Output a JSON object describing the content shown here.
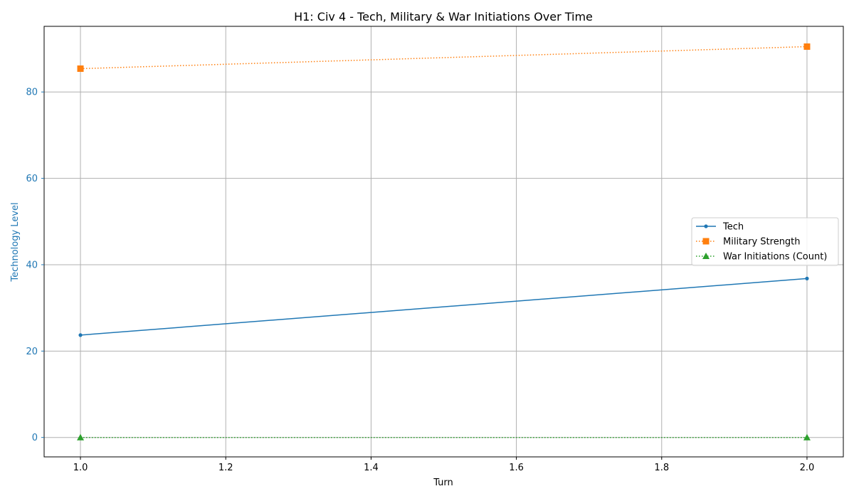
{
  "chart_data": {
    "type": "line",
    "title": "H1: Civ 4 - Tech, Military & War Initiations Over Time",
    "xlabel": "Turn",
    "ylabel": "Technology Level",
    "xlim": [
      0.95,
      2.05
    ],
    "ylim": [
      -4.5,
      95.2
    ],
    "xticks": [
      1.0,
      1.2,
      1.4,
      1.6,
      1.8,
      2.0
    ],
    "xtick_labels": [
      "1.0",
      "1.2",
      "1.4",
      "1.6",
      "1.8",
      "2.0"
    ],
    "yticks": [
      0,
      20,
      40,
      60,
      80
    ],
    "ytick_labels": [
      "0",
      "20",
      "40",
      "60",
      "80"
    ],
    "grid": true,
    "legend_position": "center-right",
    "x": [
      1,
      2
    ],
    "series": [
      {
        "name": "Tech",
        "values": [
          23.7,
          36.8
        ],
        "color": "#1f77b4",
        "line_style": "solid",
        "marker": "circle"
      },
      {
        "name": "Military Strength",
        "values": [
          85.4,
          90.5
        ],
        "color": "#ff7f0e",
        "line_style": "dotted",
        "marker": "square"
      },
      {
        "name": "War Initiations (Count)",
        "values": [
          0,
          0
        ],
        "color": "#2ca02c",
        "line_style": "dotted",
        "marker": "triangle"
      }
    ],
    "ylabel_color": "#1f77b4"
  }
}
